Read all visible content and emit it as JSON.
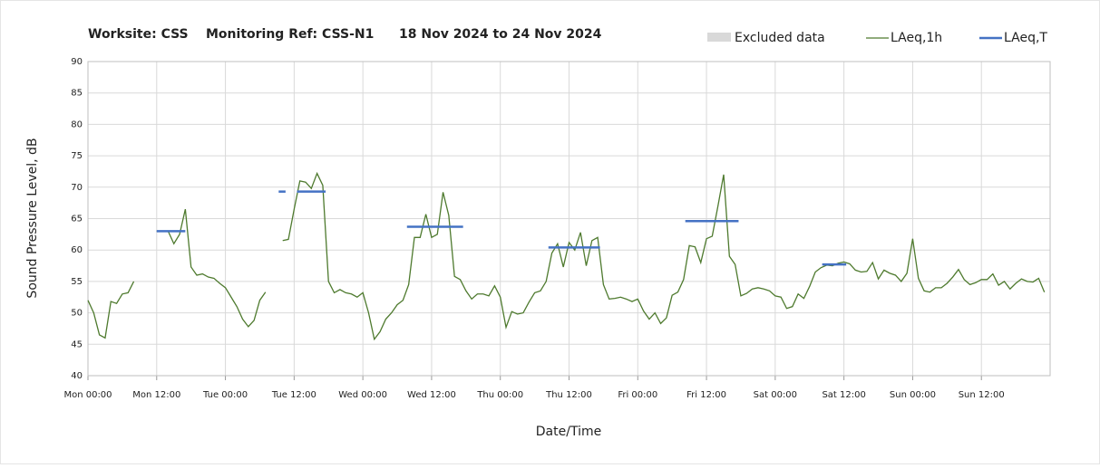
{
  "chart_data": {
    "type": "line",
    "title": [
      "Worksite: CSS",
      "Monitoring Ref: CSS-N1",
      "18 Nov 2024 to 24 Nov 2024"
    ],
    "xlabel": "Date/Time",
    "ylabel": "Sound Pressure Level, dB",
    "xlim": [
      0,
      168
    ],
    "ylim": [
      40,
      90
    ],
    "xticks": [
      {
        "value": 0,
        "label": "Mon 00:00"
      },
      {
        "value": 12,
        "label": "Mon 12:00"
      },
      {
        "value": 24,
        "label": "Tue 00:00"
      },
      {
        "value": 36,
        "label": "Tue 12:00"
      },
      {
        "value": 48,
        "label": "Wed 00:00"
      },
      {
        "value": 60,
        "label": "Wed 12:00"
      },
      {
        "value": 72,
        "label": "Thu 00:00"
      },
      {
        "value": 84,
        "label": "Thu 12:00"
      },
      {
        "value": 96,
        "label": "Fri 00:00"
      },
      {
        "value": 108,
        "label": "Fri 12:00"
      },
      {
        "value": 120,
        "label": "Sat 00:00"
      },
      {
        "value": 132,
        "label": "Sat 12:00"
      },
      {
        "value": 144,
        "label": "Sun 00:00"
      },
      {
        "value": 156,
        "label": "Sun 12:00"
      }
    ],
    "yticks": [
      40,
      45,
      50,
      55,
      60,
      65,
      70,
      75,
      80,
      85,
      90
    ],
    "grid": true,
    "excluded": {
      "name": "Excluded data",
      "color": "#d9d9d9",
      "ranges": []
    },
    "series": [
      {
        "name": "LAeq,1h",
        "color": "#4e7a2e",
        "width": 1.3,
        "x": [
          0,
          1,
          2,
          3,
          4,
          5,
          6,
          7,
          8,
          9,
          10,
          11,
          12,
          13,
          14,
          15,
          16,
          17,
          18,
          19,
          20,
          21,
          22,
          23,
          24,
          25,
          26,
          27,
          28,
          29,
          30,
          31,
          32,
          33,
          34,
          35,
          36,
          37,
          38,
          39,
          40,
          41,
          42,
          43,
          44,
          45,
          46,
          47,
          48,
          49,
          50,
          51,
          52,
          53,
          54,
          55,
          56,
          57,
          58,
          59,
          60,
          61,
          62,
          63,
          64,
          65,
          66,
          67,
          68,
          69,
          70,
          71,
          72,
          73,
          74,
          75,
          76,
          77,
          78,
          79,
          80,
          81,
          82,
          83,
          84,
          85,
          86,
          87,
          88,
          89,
          90,
          91,
          92,
          93,
          94,
          95,
          96,
          97,
          98,
          99,
          100,
          101,
          102,
          103,
          104,
          105,
          106,
          107,
          108,
          109,
          110,
          111,
          112,
          113,
          114,
          115,
          116,
          117,
          118,
          119,
          120,
          121,
          122,
          123,
          124,
          125,
          126,
          127,
          128,
          129,
          130,
          131,
          132,
          133,
          134,
          135,
          136,
          137,
          138,
          139,
          140,
          141,
          142,
          143,
          144,
          145,
          146,
          147,
          148,
          149,
          150,
          151,
          152,
          153,
          154,
          155,
          156,
          157,
          158,
          159,
          160,
          161,
          162,
          163,
          164,
          165,
          166,
          167
        ],
        "values": [
          52,
          50,
          46.5,
          46,
          51.8,
          51.5,
          53,
          53.2,
          55,
          null,
          null,
          null,
          63,
          63,
          63,
          61,
          62.5,
          66.5,
          57.3,
          56,
          56.2,
          55.7,
          55.5,
          54.7,
          54,
          52.5,
          51,
          49,
          47.8,
          48.8,
          52,
          53.3,
          null,
          null,
          61.5,
          61.7,
          66.5,
          71,
          70.8,
          69.8,
          72.2,
          70.3,
          55,
          53.2,
          53.7,
          53.2,
          53,
          52.5,
          53.2,
          50,
          45.8,
          47,
          49,
          50,
          51.3,
          52,
          54.5,
          62,
          62,
          65.7,
          62,
          62.5,
          69.2,
          65.5,
          55.8,
          55.3,
          53.5,
          52.2,
          53,
          53,
          52.7,
          54.3,
          52.5,
          47.7,
          50.2,
          49.8,
          50,
          51.7,
          53.2,
          53.5,
          55,
          59.5,
          61,
          57.3,
          61.2,
          60,
          62.8,
          57.5,
          61.5,
          62,
          54.5,
          52.2,
          52.3,
          52.5,
          52.2,
          51.8,
          52.2,
          50.3,
          49,
          50,
          48.3,
          49.2,
          52.8,
          53.3,
          55.3,
          60.7,
          60.5,
          58,
          61.8,
          62.2,
          67,
          72,
          59,
          57.7,
          52.7,
          53.1,
          53.8,
          54,
          53.8,
          53.5,
          52.7,
          52.5,
          50.7,
          51,
          53,
          52.3,
          54.2,
          56.5,
          57.2,
          57.6,
          57.5,
          57.9,
          58.1,
          57.8,
          56.8,
          56.5,
          56.6,
          58,
          55.4,
          56.8,
          56.3,
          56,
          55,
          56.3,
          61.8,
          55.5,
          53.5,
          53.3,
          54,
          54,
          54.7,
          55.7,
          56.9,
          55.3,
          54.5,
          54.8,
          55.3,
          55.3,
          56.2,
          54.4,
          55,
          53.8,
          54.7,
          55.4,
          55,
          54.9,
          55.5,
          53.3
        ]
      },
      {
        "name": "LAeq,T",
        "color": "#4472c4",
        "width": 2.5,
        "x": [
          12,
          17,
          17,
          33.3,
          34.5,
          34.5,
          36.5,
          41.5,
          41.5,
          55.7,
          65.5,
          65.5,
          80.4,
          89.4,
          89.4,
          104.3,
          113.6,
          113.6,
          128.2,
          132.4
        ],
        "values": [
          63,
          63,
          null,
          69.3,
          69.3,
          null,
          69.3,
          69.3,
          null,
          63.7,
          63.7,
          null,
          60.4,
          60.4,
          null,
          64.6,
          64.6,
          null,
          57.7,
          57.7
        ]
      }
    ]
  }
}
